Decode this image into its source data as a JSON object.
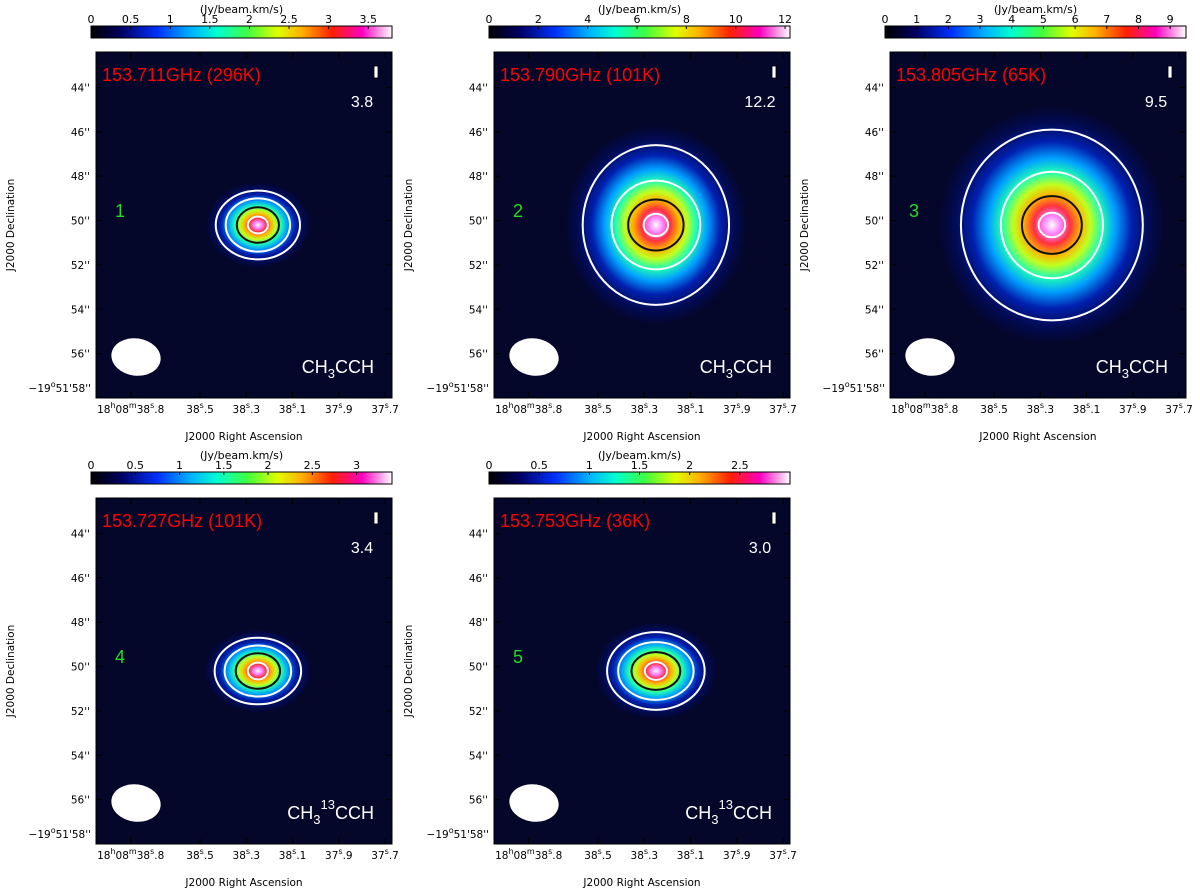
{
  "colors": {
    "map_bg": "#04062a",
    "freq_label": "#ff0000",
    "panel_number": "#22dd22",
    "contour_outer": "#ffffff",
    "contour_mid": "#111111"
  },
  "chart_data": [
    {
      "type": "heatmap",
      "panel_number": "1",
      "frequency_label": "153.711GHz (296K)",
      "peak_label": "3.8",
      "molecule": {
        "base": "CH",
        "sub": "3",
        "sup": "",
        "tail": "CCH"
      },
      "colorbar": {
        "title": "(Jy/beam.km/s)",
        "range": [
          0,
          3.8
        ],
        "ticks": [
          "0",
          "0.5",
          "1",
          "1.5",
          "2",
          "2.5",
          "3",
          "3.5"
        ],
        "tick_values": [
          0,
          0.5,
          1,
          1.5,
          2,
          2.5,
          3,
          3.5
        ]
      },
      "x_axis": {
        "label": "J2000 Right Ascension",
        "ticks": [
          {
            "h": "18",
            "hu": "h",
            "m": "08",
            "mu": "m",
            "s": "38",
            "su": "s",
            "f": ".8"
          },
          {
            "s": "38",
            "su": "s",
            "f": ".5"
          },
          {
            "s": "38",
            "su": "s",
            "f": ".3"
          },
          {
            "s": "38",
            "su": "s",
            "f": ".1"
          },
          {
            "s": "37",
            "su": "s",
            "f": ".9"
          },
          {
            "s": "37",
            "su": "s",
            "f": ".7"
          }
        ],
        "tick_seconds": [
          38.8,
          38.5,
          38.3,
          38.1,
          37.9,
          37.7
        ]
      },
      "y_axis": {
        "label": "J2000 Declination",
        "ticks": [
          "44''",
          "46''",
          "48''",
          "50''",
          "52''",
          "54''",
          "56''"
        ],
        "tick_values_arcsec": [
          44,
          46,
          48,
          50,
          52,
          54,
          56
        ],
        "bottom_tick": {
          "d": "−19",
          "du": "o",
          "m": "51'",
          "s": "58''"
        },
        "range_arcsec": [
          42.4,
          58.0
        ]
      },
      "source": {
        "ra_sec": 38.25,
        "dec_arcsec": 50.2
      },
      "beam": {
        "major_arcsec": 1.8,
        "minor_arcsec": 1.4
      },
      "contours": [
        {
          "rx_arcsec": 1.9,
          "ry_arcsec": 1.55,
          "color": "#ffffff"
        },
        {
          "rx_arcsec": 1.45,
          "ry_arcsec": 1.2,
          "color": "#ffffff"
        },
        {
          "rx_arcsec": 0.95,
          "ry_arcsec": 0.8,
          "color": "#111111"
        },
        {
          "rx_arcsec": 0.45,
          "ry_arcsec": 0.38,
          "color": "#ffffff"
        }
      ]
    },
    {
      "type": "heatmap",
      "panel_number": "2",
      "frequency_label": "153.790GHz (101K)",
      "peak_label": "12.2",
      "molecule": {
        "base": "CH",
        "sub": "3",
        "sup": "",
        "tail": "CCH"
      },
      "colorbar": {
        "title": "(Jy/beam.km/s)",
        "range": [
          0,
          12.2
        ],
        "ticks": [
          "0",
          "2",
          "4",
          "6",
          "8",
          "10",
          "12"
        ],
        "tick_values": [
          0,
          2,
          4,
          6,
          8,
          10,
          12
        ]
      },
      "x_axis": {
        "label": "J2000 Right Ascension",
        "ticks": [
          {
            "h": "18",
            "hu": "h",
            "m": "08",
            "mu": "m",
            "s": "38",
            "su": "s",
            "f": ".8"
          },
          {
            "s": "38",
            "su": "s",
            "f": ".5"
          },
          {
            "s": "38",
            "su": "s",
            "f": ".3"
          },
          {
            "s": "38",
            "su": "s",
            "f": ".1"
          },
          {
            "s": "37",
            "su": "s",
            "f": ".9"
          },
          {
            "s": "37",
            "su": "s",
            "f": ".7"
          }
        ],
        "tick_seconds": [
          38.8,
          38.5,
          38.3,
          38.1,
          37.9,
          37.7
        ]
      },
      "y_axis": {
        "label": "J2000 Declination",
        "ticks": [
          "44''",
          "46''",
          "48''",
          "50''",
          "52''",
          "54''",
          "56''"
        ],
        "tick_values_arcsec": [
          44,
          46,
          48,
          50,
          52,
          54,
          56
        ],
        "bottom_tick": {
          "d": "−19",
          "du": "o",
          "m": "51'",
          "s": "58''"
        },
        "range_arcsec": [
          42.4,
          58.0
        ]
      },
      "source": {
        "ra_sec": 38.25,
        "dec_arcsec": 50.2
      },
      "beam": {
        "major_arcsec": 1.8,
        "minor_arcsec": 1.4
      },
      "contours": [
        {
          "rx_arcsec": 3.3,
          "ry_arcsec": 3.6,
          "color": "#ffffff"
        },
        {
          "rx_arcsec": 2.0,
          "ry_arcsec": 2.0,
          "color": "#ffffff"
        },
        {
          "rx_arcsec": 1.25,
          "ry_arcsec": 1.15,
          "color": "#111111"
        },
        {
          "rx_arcsec": 0.55,
          "ry_arcsec": 0.5,
          "color": "#ffffff"
        }
      ]
    },
    {
      "type": "heatmap",
      "panel_number": "3",
      "frequency_label": "153.805GHz (65K)",
      "peak_label": "9.5",
      "molecule": {
        "base": "CH",
        "sub": "3",
        "sup": "",
        "tail": "CCH"
      },
      "colorbar": {
        "title": "(Jy/beam.km/s)",
        "range": [
          0,
          9.5
        ],
        "ticks": [
          "0",
          "1",
          "2",
          "3",
          "4",
          "5",
          "6",
          "7",
          "8",
          "9"
        ],
        "tick_values": [
          0,
          1,
          2,
          3,
          4,
          5,
          6,
          7,
          8,
          9
        ]
      },
      "x_axis": {
        "label": "J2000 Right Ascension",
        "ticks": [
          {
            "h": "18",
            "hu": "h",
            "m": "08",
            "mu": "m",
            "s": "38",
            "su": "s",
            "f": ".8"
          },
          {
            "s": "38",
            "su": "s",
            "f": ".5"
          },
          {
            "s": "38",
            "su": "s",
            "f": ".3"
          },
          {
            "s": "38",
            "su": "s",
            "f": ".1"
          },
          {
            "s": "37",
            "su": "s",
            "f": ".9"
          },
          {
            "s": "37",
            "su": "s",
            "f": ".7"
          }
        ],
        "tick_seconds": [
          38.8,
          38.5,
          38.3,
          38.1,
          37.9,
          37.7
        ]
      },
      "y_axis": {
        "label": "J2000 Declination",
        "ticks": [
          "44''",
          "46''",
          "48''",
          "50''",
          "52''",
          "54''",
          "56''"
        ],
        "tick_values_arcsec": [
          44,
          46,
          48,
          50,
          52,
          54,
          56
        ],
        "bottom_tick": {
          "d": "−19",
          "du": "o",
          "m": "51'",
          "s": "58''"
        },
        "range_arcsec": [
          42.4,
          58.0
        ]
      },
      "source": {
        "ra_sec": 38.25,
        "dec_arcsec": 50.2
      },
      "beam": {
        "major_arcsec": 1.8,
        "minor_arcsec": 1.4
      },
      "contours": [
        {
          "rx_arcsec": 4.1,
          "ry_arcsec": 4.3,
          "color": "#ffffff"
        },
        {
          "rx_arcsec": 2.3,
          "ry_arcsec": 2.4,
          "color": "#ffffff"
        },
        {
          "rx_arcsec": 1.35,
          "ry_arcsec": 1.3,
          "color": "#111111"
        },
        {
          "rx_arcsec": 0.6,
          "ry_arcsec": 0.55,
          "color": "#ffffff"
        }
      ]
    },
    {
      "type": "heatmap",
      "panel_number": "4",
      "frequency_label": "153.727GHz (101K)",
      "peak_label": "3.4",
      "molecule": {
        "base": "CH",
        "sub": "3",
        "sup": "13",
        "tail": "CCH"
      },
      "colorbar": {
        "title": "(Jy/beam.km/s)",
        "range": [
          0,
          3.4
        ],
        "ticks": [
          "0",
          "0.5",
          "1",
          "1.5",
          "2",
          "2.5",
          "3"
        ],
        "tick_values": [
          0,
          0.5,
          1,
          1.5,
          2,
          2.5,
          3
        ]
      },
      "x_axis": {
        "label": "J2000 Right Ascension",
        "ticks": [
          {
            "h": "18",
            "hu": "h",
            "m": "08",
            "mu": "m",
            "s": "38",
            "su": "s",
            "f": ".8"
          },
          {
            "s": "38",
            "su": "s",
            "f": ".5"
          },
          {
            "s": "38",
            "su": "s",
            "f": ".3"
          },
          {
            "s": "38",
            "su": "s",
            "f": ".1"
          },
          {
            "s": "37",
            "su": "s",
            "f": ".9"
          },
          {
            "s": "37",
            "su": "s",
            "f": ".7"
          }
        ],
        "tick_seconds": [
          38.8,
          38.5,
          38.3,
          38.1,
          37.9,
          37.7
        ]
      },
      "y_axis": {
        "label": "J2000 Declination",
        "ticks": [
          "44''",
          "46''",
          "48''",
          "50''",
          "52''",
          "54''",
          "56''"
        ],
        "tick_values_arcsec": [
          44,
          46,
          48,
          50,
          52,
          54,
          56
        ],
        "bottom_tick": {
          "d": "−19",
          "du": "o",
          "m": "51'",
          "s": "58''"
        },
        "range_arcsec": [
          42.4,
          58.0
        ]
      },
      "source": {
        "ra_sec": 38.25,
        "dec_arcsec": 50.2
      },
      "beam": {
        "major_arcsec": 1.8,
        "minor_arcsec": 1.4
      },
      "contours": [
        {
          "rx_arcsec": 1.95,
          "ry_arcsec": 1.5,
          "color": "#ffffff"
        },
        {
          "rx_arcsec": 1.5,
          "ry_arcsec": 1.15,
          "color": "#ffffff"
        },
        {
          "rx_arcsec": 1.0,
          "ry_arcsec": 0.8,
          "color": "#111111"
        },
        {
          "rx_arcsec": 0.45,
          "ry_arcsec": 0.38,
          "color": "#ffffff"
        }
      ]
    },
    {
      "type": "heatmap",
      "panel_number": "5",
      "frequency_label": "153.753GHz (36K)",
      "peak_label": "3.0",
      "molecule": {
        "base": "CH",
        "sub": "3",
        "sup": "13",
        "tail": "CCH"
      },
      "colorbar": {
        "title": "(Jy/beam.km/s)",
        "range": [
          0,
          3.0
        ],
        "ticks": [
          "0",
          "0.5",
          "1",
          "1.5",
          "2",
          "2.5"
        ],
        "tick_values": [
          0,
          0.5,
          1,
          1.5,
          2,
          2.5
        ]
      },
      "x_axis": {
        "label": "J2000 Right Ascension",
        "ticks": [
          {
            "h": "18",
            "hu": "h",
            "m": "08",
            "mu": "m",
            "s": "38",
            "su": "s",
            "f": ".8"
          },
          {
            "s": "38",
            "su": "s",
            "f": ".5"
          },
          {
            "s": "38",
            "su": "s",
            "f": ".3"
          },
          {
            "s": "38",
            "su": "s",
            "f": ".1"
          },
          {
            "s": "37",
            "su": "s",
            "f": ".9"
          },
          {
            "s": "37",
            "su": "s",
            "f": ".7"
          }
        ],
        "tick_seconds": [
          38.8,
          38.5,
          38.3,
          38.1,
          37.9,
          37.7
        ]
      },
      "y_axis": {
        "label": "J2000 Declination",
        "ticks": [
          "44''",
          "46''",
          "48''",
          "50''",
          "52''",
          "54''",
          "56''"
        ],
        "tick_values_arcsec": [
          44,
          46,
          48,
          50,
          52,
          54,
          56
        ],
        "bottom_tick": {
          "d": "−19",
          "du": "o",
          "m": "51'",
          "s": "58''"
        },
        "range_arcsec": [
          42.4,
          58.0
        ]
      },
      "source": {
        "ra_sec": 38.25,
        "dec_arcsec": 50.2
      },
      "beam": {
        "major_arcsec": 1.8,
        "minor_arcsec": 1.4
      },
      "contours": [
        {
          "rx_arcsec": 2.2,
          "ry_arcsec": 1.75,
          "color": "#ffffff"
        },
        {
          "rx_arcsec": 1.7,
          "ry_arcsec": 1.3,
          "color": "#ffffff"
        },
        {
          "rx_arcsec": 1.1,
          "ry_arcsec": 0.85,
          "color": "#111111"
        },
        {
          "rx_arcsec": 0.5,
          "ry_arcsec": 0.4,
          "color": "#ffffff"
        }
      ]
    }
  ]
}
